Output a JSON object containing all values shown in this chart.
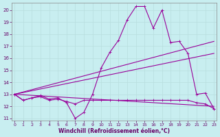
{
  "background_color": "#c8eef0",
  "grid_color": "#b8dede",
  "line_color": "#990099",
  "marker_color": "#990099",
  "xlabel": "Windchill (Refroidissement éolien,°C)",
  "xlabel_color": "#660066",
  "tick_color": "#660066",
  "xlim": [
    -0.3,
    23.3
  ],
  "ylim": [
    10.8,
    20.6
  ],
  "yticks": [
    11,
    12,
    13,
    14,
    15,
    16,
    17,
    18,
    19,
    20
  ],
  "xticks": [
    0,
    1,
    2,
    3,
    4,
    5,
    6,
    7,
    8,
    9,
    10,
    11,
    12,
    13,
    14,
    15,
    16,
    17,
    18,
    19,
    20,
    21,
    22,
    23
  ],
  "curve1_x": [
    0,
    1,
    2,
    3,
    4,
    5,
    6,
    7,
    8,
    9,
    10,
    11,
    12,
    13,
    14,
    15,
    16,
    17,
    18,
    19,
    20,
    21,
    22,
    23
  ],
  "curve1_y": [
    13.0,
    12.5,
    12.7,
    12.9,
    12.6,
    12.7,
    12.3,
    11.0,
    11.5,
    13.0,
    15.2,
    16.5,
    17.5,
    19.2,
    20.3,
    20.3,
    18.5,
    20.0,
    17.3,
    17.4,
    16.4,
    13.0,
    13.1,
    11.8
  ],
  "curve2_x": [
    0,
    1,
    2,
    3,
    4,
    5,
    6,
    7,
    8,
    9,
    10,
    11,
    12,
    13,
    14,
    15,
    16,
    17,
    18,
    19,
    20,
    21,
    22,
    23
  ],
  "curve2_y": [
    13.0,
    12.5,
    12.7,
    12.8,
    12.5,
    12.6,
    12.4,
    12.2,
    12.5,
    12.5,
    12.5,
    12.5,
    12.5,
    12.5,
    12.5,
    12.5,
    12.5,
    12.5,
    12.5,
    12.5,
    12.5,
    12.3,
    12.2,
    11.8
  ],
  "line1": {
    "x": [
      0,
      23
    ],
    "y": [
      13.0,
      17.4
    ]
  },
  "line2": {
    "x": [
      0,
      23
    ],
    "y": [
      13.0,
      16.4
    ]
  },
  "line3": {
    "x": [
      0,
      23
    ],
    "y": [
      13.0,
      12.0
    ]
  },
  "figsize": [
    3.2,
    2.0
  ],
  "dpi": 100
}
